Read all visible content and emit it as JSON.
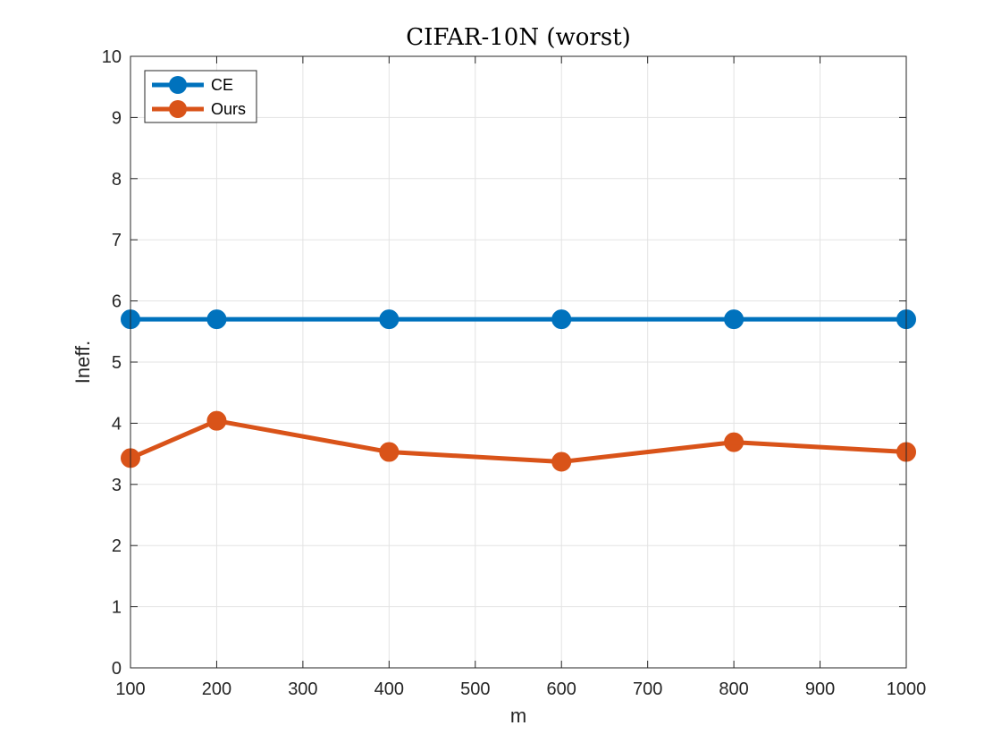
{
  "chart_data": {
    "type": "line",
    "title": "CIFAR-10N (worst)",
    "xlabel": "m",
    "ylabel": "Ineff.",
    "xlim": [
      100,
      1000
    ],
    "ylim": [
      0,
      10
    ],
    "xticks": [
      100,
      200,
      300,
      400,
      500,
      600,
      700,
      800,
      900,
      1000
    ],
    "yticks": [
      0,
      1,
      2,
      3,
      4,
      5,
      6,
      7,
      8,
      9,
      10
    ],
    "grid": true,
    "legend_position": "top-left",
    "series": [
      {
        "name": "CE",
        "color": "#0072BD",
        "x": [
          100,
          200,
          400,
          600,
          800,
          1000
        ],
        "y": [
          5.7,
          5.7,
          5.7,
          5.7,
          5.7,
          5.7
        ]
      },
      {
        "name": "Ours",
        "color": "#D95319",
        "x": [
          100,
          200,
          400,
          600,
          800,
          1000
        ],
        "y": [
          3.43,
          4.04,
          3.53,
          3.37,
          3.69,
          3.53
        ]
      }
    ]
  }
}
